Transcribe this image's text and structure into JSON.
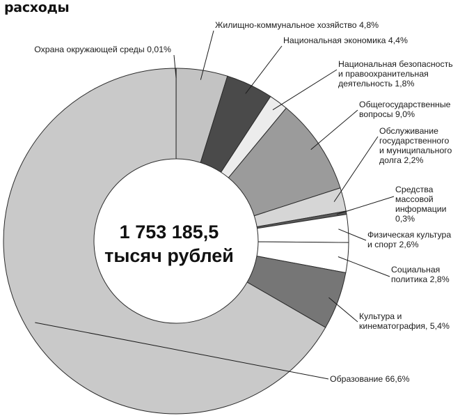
{
  "header": {
    "title": "расходы"
  },
  "chart_data": {
    "type": "pie",
    "title": "расходы",
    "center_label": [
      "1 753 185,5",
      "тысяч рублей"
    ],
    "slices": [
      {
        "label": [
          "Охрана окружающей среды 0,01%"
        ],
        "value": 0.01,
        "color": "#d0d0d0"
      },
      {
        "label": [
          "Жилищно-коммунальное хозяйство 4,8%"
        ],
        "value": 4.8,
        "color": "#c3c3c3"
      },
      {
        "label": [
          "Национальная экономика 4,4%"
        ],
        "value": 4.4,
        "color": "#4a4a4a"
      },
      {
        "label": [
          "Национальная безопасность",
          "и правоохранительная",
          "деятельность 1,8%"
        ],
        "value": 1.8,
        "color": "#ececec"
      },
      {
        "label": [
          "Общегосударственные",
          "вопросы 9,0%"
        ],
        "value": 9.0,
        "color": "#9b9b9b"
      },
      {
        "label": [
          "Обслуживание",
          "государственного",
          "и муниципального",
          "долга 2,2%"
        ],
        "value": 2.2,
        "color": "#d6d6d6"
      },
      {
        "label": [
          "Средства",
          "массовой",
          "информации",
          "0,3%"
        ],
        "value": 0.3,
        "color": "#5a5a5a"
      },
      {
        "label": [
          "Физическая культура",
          "и спорт 2,6%"
        ],
        "value": 2.6,
        "color": "#ffffff"
      },
      {
        "label": [
          "Социальная",
          "политика  2,8%"
        ],
        "value": 2.8,
        "color": "#ffffff"
      },
      {
        "label": [
          "Культура и",
          "кинематография, 5,4%"
        ],
        "value": 5.4,
        "color": "#767676"
      },
      {
        "label": [
          "Образование 66,6%"
        ],
        "value": 66.6,
        "color": "#c9c9c9"
      }
    ]
  }
}
